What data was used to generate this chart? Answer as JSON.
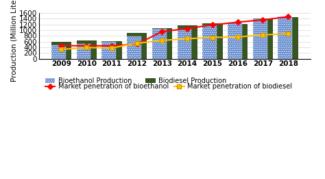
{
  "years": [
    2009,
    2010,
    2011,
    2012,
    2013,
    2014,
    2015,
    2016,
    2017,
    2018
  ],
  "bioethanol_production": [
    460,
    515,
    600,
    790,
    1040,
    1055,
    1175,
    1270,
    1380,
    1490
  ],
  "biodiesel_production": [
    600,
    650,
    625,
    905,
    1070,
    1160,
    1240,
    1225,
    1415,
    1465
  ],
  "market_pen_bioethanol": [
    455,
    455,
    450,
    510,
    950,
    1055,
    1185,
    1280,
    1360,
    1470
  ],
  "market_pen_biodiesel": [
    325,
    390,
    375,
    540,
    640,
    700,
    745,
    760,
    835,
    875
  ],
  "bar_color_bioethanol": "#4472C4",
  "bar_color_biodiesel": "#375623",
  "line_color_bioethanol": "#FF0000",
  "line_color_biodiesel": "#FFC000",
  "ylabel": "Production (Million Liters)",
  "ylim": [
    0,
    1600
  ],
  "yticks": [
    0,
    200,
    400,
    600,
    800,
    1000,
    1200,
    1400,
    1600
  ],
  "legend_bioethanol_bar": "Bioethanol Production",
  "legend_biodiesel_bar": "Biodiesel Production",
  "legend_bioethanol_line": "Market penetration of bioethanol",
  "legend_biodiesel_line": "Market penetration of biodiesel",
  "background_color": "#FFFFFF",
  "tick_fontsize": 7.5,
  "legend_fontsize": 7
}
